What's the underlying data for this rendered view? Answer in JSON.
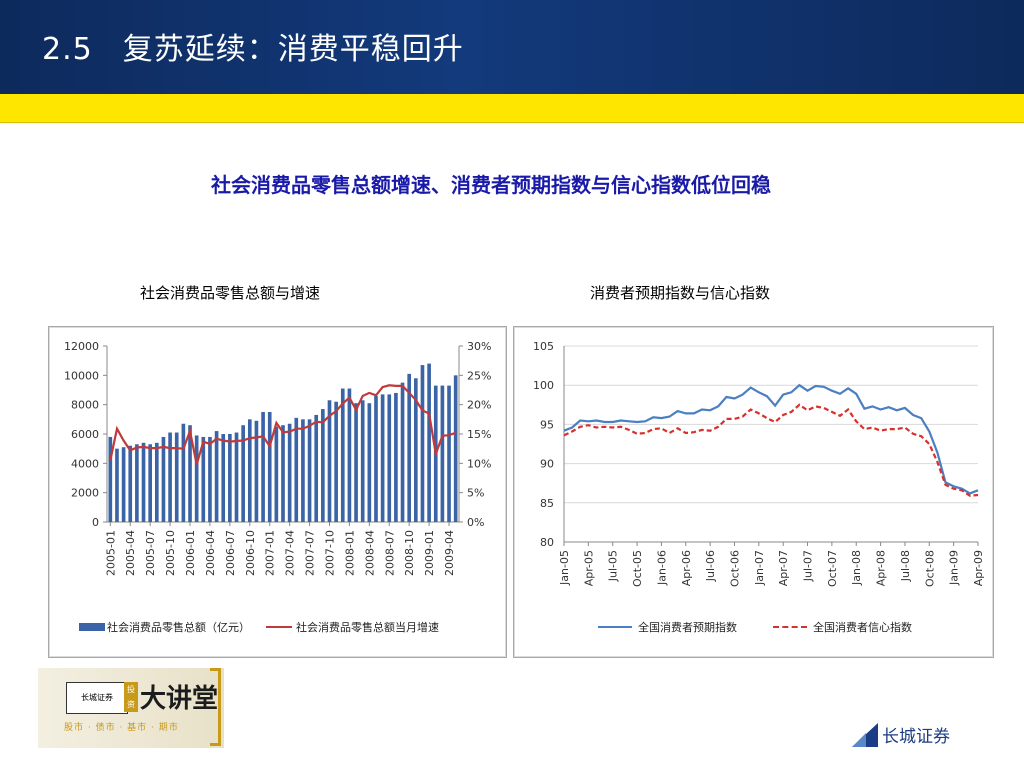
{
  "slide": {
    "number": "2.5",
    "title": "复苏延续：消费平稳回升",
    "subtitle": "社会消费品零售总额增速、消费者预期指数与信心指数低位回稳"
  },
  "colors": {
    "header": "#133a7c",
    "band": "#ffe600",
    "bar": "#3b64a6",
    "growth_line": "#c0393b",
    "expectation_line": "#4a7fc1",
    "confidence_line": "#d8302c",
    "subtitle": "#1a1aa8"
  },
  "logo": {
    "box_text": "长城证券",
    "stamp_text": "投资",
    "big_text": "大讲堂",
    "tagline": "股市 · 债市 · 基市 · 期市"
  },
  "brand": {
    "name": "长城证券",
    "icon": "great-wall-securities-icon"
  },
  "chart_data": [
    {
      "type": "bar",
      "title": "社会消费品零售总额与增速",
      "x": [
        "2005-01",
        "2005-02",
        "2005-03",
        "2005-04",
        "2005-05",
        "2005-06",
        "2005-07",
        "2005-08",
        "2005-09",
        "2005-10",
        "2005-11",
        "2005-12",
        "2006-01",
        "2006-02",
        "2006-03",
        "2006-04",
        "2006-05",
        "2006-06",
        "2006-07",
        "2006-08",
        "2006-09",
        "2006-10",
        "2006-11",
        "2006-12",
        "2007-01",
        "2007-02",
        "2007-03",
        "2007-04",
        "2007-05",
        "2007-06",
        "2007-07",
        "2007-08",
        "2007-09",
        "2007-10",
        "2007-11",
        "2007-12",
        "2008-01",
        "2008-02",
        "2008-03",
        "2008-04",
        "2008-05",
        "2008-06",
        "2008-07",
        "2008-08",
        "2008-09",
        "2008-10",
        "2008-11",
        "2008-12",
        "2009-01",
        "2009-02",
        "2009-03",
        "2009-04",
        "2009-05"
      ],
      "tick_labels": [
        "2005-01",
        "2005-04",
        "2005-07",
        "2005-10",
        "2006-01",
        "2006-04",
        "2006-07",
        "2006-10",
        "2007-01",
        "2007-04",
        "2007-07",
        "2007-10",
        "2008-01",
        "2008-04",
        "2008-07",
        "2008-10",
        "2009-01",
        "2009-04"
      ],
      "series": [
        {
          "name": "社会消费品零售总额（亿元）",
          "axis": "left",
          "type": "bar",
          "values": [
            5800,
            5000,
            5100,
            5200,
            5300,
            5400,
            5300,
            5400,
            5800,
            6100,
            6100,
            6700,
            6600,
            5900,
            5800,
            5800,
            6200,
            6000,
            6000,
            6100,
            6600,
            7000,
            6900,
            7500,
            7500,
            6500,
            6600,
            6700,
            7100,
            7000,
            7000,
            7300,
            7700,
            8300,
            8200,
            9100,
            9100,
            8100,
            8300,
            8100,
            8600,
            8700,
            8700,
            8800,
            9500,
            10100,
            9800,
            10700,
            10800,
            9300,
            9300,
            9300,
            10000
          ]
        },
        {
          "name": "社会消费品零售总额当月增速",
          "axis": "right",
          "type": "line",
          "values": [
            10.5,
            15.9,
            13.9,
            12.2,
            12.7,
            12.8,
            12.6,
            12.6,
            12.8,
            12.6,
            12.6,
            12.5,
            15.5,
            9.8,
            13.7,
            13.3,
            14.2,
            13.9,
            13.7,
            13.8,
            13.9,
            14.3,
            14.4,
            14.6,
            12.9,
            16.9,
            15.3,
            15.4,
            15.9,
            15.9,
            16.4,
            17.1,
            17.0,
            18.1,
            18.9,
            20.2,
            21.2,
            19.1,
            21.5,
            22.0,
            21.6,
            23.0,
            23.3,
            23.2,
            23.2,
            22.0,
            20.8,
            19.0,
            18.5,
            11.6,
            14.7,
            14.8,
            15.2
          ]
        }
      ],
      "y_left": {
        "min": 0,
        "max": 12000,
        "ticks": [
          0,
          2000,
          4000,
          6000,
          8000,
          10000,
          12000
        ]
      },
      "y_right": {
        "min": 0,
        "max": 30,
        "ticks": [
          "0%",
          "5%",
          "10%",
          "15%",
          "20%",
          "25%",
          "30%"
        ]
      },
      "legend_position": "bottom",
      "grid": false
    },
    {
      "type": "line",
      "title": "消费者预期指数与信心指数",
      "x": [
        "Jan-05",
        "Feb-05",
        "Mar-05",
        "Apr-05",
        "May-05",
        "Jun-05",
        "Jul-05",
        "Aug-05",
        "Sep-05",
        "Oct-05",
        "Nov-05",
        "Dec-05",
        "Jan-06",
        "Feb-06",
        "Mar-06",
        "Apr-06",
        "May-06",
        "Jun-06",
        "Jul-06",
        "Aug-06",
        "Sep-06",
        "Oct-06",
        "Nov-06",
        "Dec-06",
        "Jan-07",
        "Feb-07",
        "Mar-07",
        "Apr-07",
        "May-07",
        "Jun-07",
        "Jul-07",
        "Aug-07",
        "Sep-07",
        "Oct-07",
        "Nov-07",
        "Dec-07",
        "Jan-08",
        "Feb-08",
        "Mar-08",
        "Apr-08",
        "May-08",
        "Jun-08",
        "Jul-08",
        "Aug-08",
        "Sep-08",
        "Oct-08",
        "Nov-08",
        "Dec-08",
        "Jan-09",
        "Feb-09",
        "Mar-09",
        "Apr-09"
      ],
      "tick_labels": [
        "Jan-05",
        "Apr-05",
        "Jul-05",
        "Oct-05",
        "Jan-06",
        "Apr-06",
        "Jul-06",
        "Oct-06",
        "Jan-07",
        "Apr-07",
        "Jul-07",
        "Oct-07",
        "Jan-08",
        "Apr-08",
        "Jul-08",
        "Oct-08",
        "Jan-09",
        "Apr-09"
      ],
      "series": [
        {
          "name": "全国消费者预期指数",
          "style": "solid",
          "values": [
            94.2,
            94.6,
            95.5,
            95.4,
            95.5,
            95.3,
            95.3,
            95.5,
            95.4,
            95.3,
            95.4,
            95.9,
            95.8,
            96.0,
            96.7,
            96.4,
            96.4,
            96.9,
            96.8,
            97.3,
            98.5,
            98.3,
            98.8,
            99.7,
            99.1,
            98.6,
            97.4,
            98.8,
            99.1,
            100.0,
            99.3,
            99.9,
            99.8,
            99.3,
            98.9,
            99.6,
            98.9,
            97.0,
            97.3,
            96.9,
            97.2,
            96.8,
            97.1,
            96.2,
            95.8,
            94.1,
            91.4,
            87.6,
            87.1,
            86.8,
            86.2,
            86.6
          ]
        },
        {
          "name": "全国消费者信心指数",
          "style": "dashed",
          "values": [
            93.6,
            94.1,
            94.7,
            94.9,
            94.6,
            94.7,
            94.6,
            94.7,
            94.3,
            93.8,
            93.9,
            94.4,
            94.5,
            93.9,
            94.5,
            93.9,
            94.0,
            94.3,
            94.2,
            94.7,
            95.7,
            95.7,
            96.0,
            96.9,
            96.4,
            95.8,
            95.3,
            96.2,
            96.6,
            97.5,
            96.8,
            97.3,
            97.1,
            96.6,
            96.1,
            96.9,
            95.4,
            94.4,
            94.6,
            94.2,
            94.4,
            94.4,
            94.6,
            93.8,
            93.5,
            92.5,
            90.2,
            87.3,
            86.8,
            86.6,
            85.9,
            86.0
          ]
        }
      ],
      "y": {
        "min": 80,
        "max": 105,
        "ticks": [
          80,
          85,
          90,
          95,
          100,
          105
        ]
      },
      "legend_position": "bottom",
      "grid": true
    }
  ]
}
